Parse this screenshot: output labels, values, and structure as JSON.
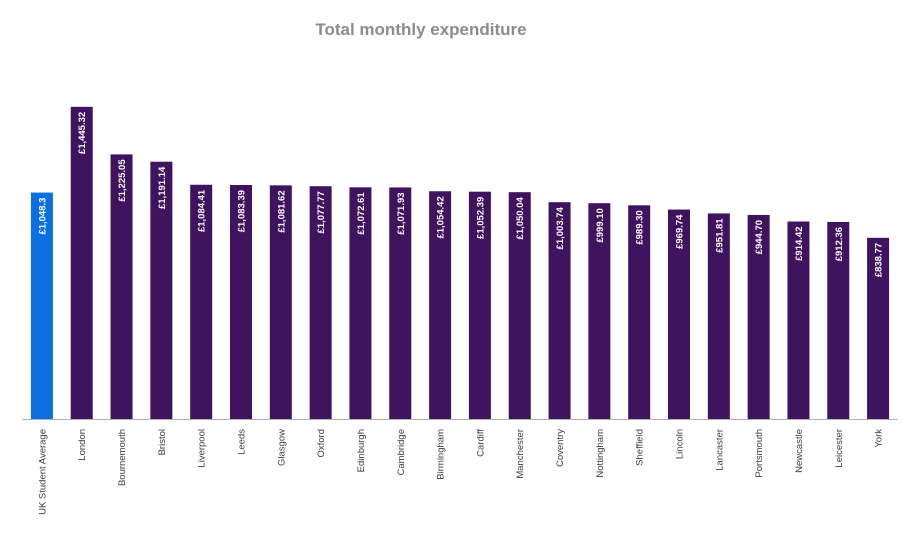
{
  "chart_data": {
    "type": "bar",
    "title": "Total monthly expenditure",
    "xlabel": "",
    "ylabel": "",
    "ylim": [
      0,
      1500
    ],
    "grid": false,
    "categories": [
      "UK Student Average",
      "London",
      "Bournemouth",
      "Bristol",
      "Liverpool",
      "Leeds",
      "Glasgow",
      "Oxford",
      "Edinburgh",
      "Cambridge",
      "Birmingham",
      "Cardiff",
      "Manchester",
      "Coventry",
      "Nottingham",
      "Sheffield",
      "Lincoln",
      "Lancaster",
      "Portsmouth",
      "Newcastle",
      "Leicester",
      "York"
    ],
    "values": [
      1048.3,
      1445.32,
      1225.05,
      1191.14,
      1084.41,
      1083.39,
      1081.62,
      1077.77,
      1072.61,
      1071.93,
      1054.42,
      1052.39,
      1050.04,
      1003.74,
      999.1,
      989.3,
      969.74,
      951.81,
      944.7,
      914.42,
      912.36,
      838.77
    ],
    "data_labels": [
      "£1,048.3",
      "£1,445.32",
      "£1,225.05",
      "£1,191.14",
      "£1,084.41",
      "£1,083.39",
      "£1,081.62",
      "£1,077.77",
      "£1,072.61",
      "£1,071.93",
      "£1,054.42",
      "£1,052.39",
      "£1,050.04",
      "£1,003.74",
      "£999.10",
      "£989.30",
      "£969.74",
      "£951.81",
      "£944.70",
      "£914.42",
      "£912.36",
      "£838.77"
    ],
    "highlight_index": 0,
    "colors": {
      "highlight": "#0a6fe0",
      "bar": "#40135e",
      "axis": "#b0b0b0"
    }
  }
}
